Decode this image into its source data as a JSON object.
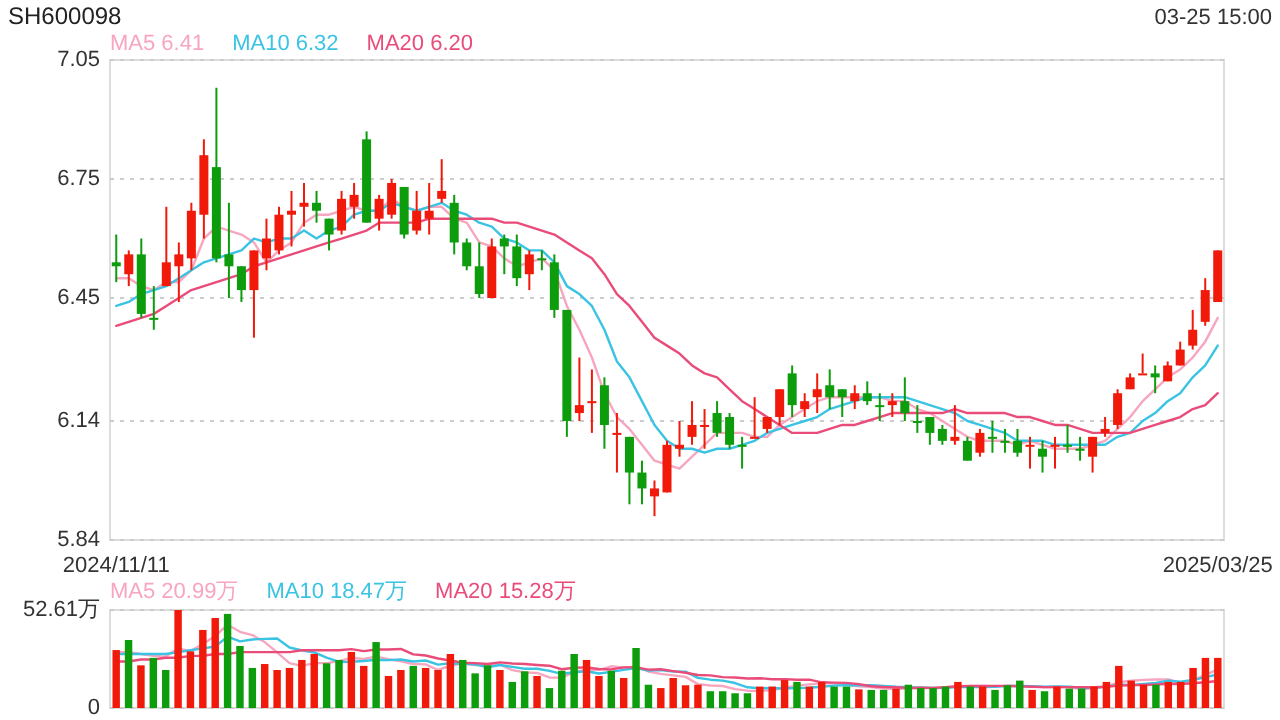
{
  "chart_data": [
    {
      "type": "candlestick",
      "title": "SH600098",
      "annotations": [
        "03-25 15:00"
      ],
      "legend": "top left",
      "grid": "y",
      "ylim": [
        5.84,
        7.05
      ],
      "yticks": [
        7.05,
        6.75,
        6.45,
        6.14,
        5.84
      ],
      "categories": [
        "2024/11/11",
        null,
        null,
        null,
        null,
        null,
        null,
        null,
        null,
        null,
        null,
        null,
        null,
        null,
        null,
        null,
        null,
        null,
        null,
        null,
        null,
        null,
        null,
        null,
        null,
        null,
        null,
        null,
        null,
        null,
        null,
        null,
        null,
        null,
        null,
        null,
        null,
        null,
        null,
        null,
        null,
        null,
        null,
        null,
        null,
        null,
        null,
        null,
        null,
        null,
        null,
        null,
        null,
        null,
        null,
        null,
        null,
        null,
        null,
        null,
        null,
        null,
        null,
        null,
        null,
        null,
        null,
        null,
        null,
        null,
        null,
        null,
        null,
        null,
        null,
        null,
        null,
        null,
        null,
        null,
        null,
        null,
        null,
        null,
        null,
        null,
        null,
        null,
        "2025/03/25"
      ],
      "ohlc": [
        [
          6.54,
          6.61,
          6.49,
          6.53
        ],
        [
          6.51,
          6.57,
          6.48,
          6.56
        ],
        [
          6.56,
          6.6,
          6.4,
          6.41
        ],
        [
          6.4,
          6.48,
          6.37,
          6.4
        ],
        [
          6.48,
          6.68,
          6.48,
          6.54
        ],
        [
          6.53,
          6.59,
          6.44,
          6.56
        ],
        [
          6.55,
          6.69,
          6.52,
          6.67
        ],
        [
          6.66,
          6.85,
          6.6,
          6.81
        ],
        [
          6.78,
          6.98,
          6.54,
          6.55
        ],
        [
          6.56,
          6.69,
          6.45,
          6.53
        ],
        [
          6.53,
          6.53,
          6.44,
          6.47
        ],
        [
          6.47,
          6.57,
          6.35,
          6.57
        ],
        [
          6.55,
          6.65,
          6.52,
          6.6
        ],
        [
          6.57,
          6.68,
          6.56,
          6.66
        ],
        [
          6.66,
          6.72,
          6.58,
          6.67
        ],
        [
          6.68,
          6.74,
          6.63,
          6.69
        ],
        [
          6.69,
          6.72,
          6.64,
          6.67
        ],
        [
          6.65,
          6.65,
          6.57,
          6.61
        ],
        [
          6.62,
          6.72,
          6.61,
          6.7
        ],
        [
          6.68,
          6.74,
          6.65,
          6.71
        ],
        [
          6.85,
          6.87,
          6.64,
          6.64
        ],
        [
          6.65,
          6.71,
          6.62,
          6.7
        ],
        [
          6.66,
          6.75,
          6.65,
          6.74
        ],
        [
          6.73,
          6.73,
          6.6,
          6.61
        ],
        [
          6.62,
          6.72,
          6.61,
          6.67
        ],
        [
          6.65,
          6.74,
          6.61,
          6.67
        ],
        [
          6.7,
          6.8,
          6.69,
          6.72
        ],
        [
          6.69,
          6.71,
          6.56,
          6.59
        ],
        [
          6.59,
          6.6,
          6.52,
          6.53
        ],
        [
          6.53,
          6.59,
          6.45,
          6.46
        ],
        [
          6.45,
          6.6,
          6.45,
          6.58
        ],
        [
          6.6,
          6.61,
          6.51,
          6.58
        ],
        [
          6.58,
          6.61,
          6.48,
          6.5
        ],
        [
          6.51,
          6.57,
          6.47,
          6.56
        ],
        [
          6.55,
          6.57,
          6.52,
          6.55
        ],
        [
          6.54,
          6.56,
          6.4,
          6.42
        ],
        [
          6.42,
          6.42,
          6.1,
          6.14
        ],
        [
          6.16,
          6.3,
          6.14,
          6.18
        ],
        [
          6.19,
          6.27,
          6.11,
          6.19
        ],
        [
          6.23,
          6.25,
          6.07,
          6.13
        ],
        [
          6.11,
          6.16,
          6.01,
          6.11
        ],
        [
          6.1,
          6.1,
          5.93,
          6.01
        ],
        [
          6.01,
          6.04,
          5.93,
          5.97
        ],
        [
          5.95,
          5.99,
          5.9,
          5.97
        ],
        [
          5.96,
          6.09,
          5.96,
          6.08
        ],
        [
          6.07,
          6.14,
          6.05,
          6.08
        ],
        [
          6.1,
          6.19,
          6.08,
          6.13
        ],
        [
          6.13,
          6.17,
          6.07,
          6.13
        ],
        [
          6.16,
          6.19,
          6.1,
          6.11
        ],
        [
          6.15,
          6.16,
          6.07,
          6.08
        ],
        [
          6.08,
          6.1,
          6.02,
          6.08
        ],
        [
          6.1,
          6.2,
          6.1,
          6.1
        ],
        [
          6.12,
          6.15,
          6.11,
          6.15
        ],
        [
          6.15,
          6.22,
          6.13,
          6.22
        ],
        [
          6.26,
          6.28,
          6.15,
          6.18
        ],
        [
          6.17,
          6.21,
          6.15,
          6.19
        ],
        [
          6.2,
          6.26,
          6.16,
          6.22
        ],
        [
          6.23,
          6.27,
          6.17,
          6.2
        ],
        [
          6.22,
          6.22,
          6.15,
          6.2
        ],
        [
          6.19,
          6.23,
          6.17,
          6.21
        ],
        [
          6.21,
          6.24,
          6.18,
          6.19
        ],
        [
          6.18,
          6.21,
          6.14,
          6.18
        ],
        [
          6.18,
          6.21,
          6.15,
          6.19
        ],
        [
          6.19,
          6.25,
          6.14,
          6.16
        ],
        [
          6.14,
          6.18,
          6.11,
          6.14
        ],
        [
          6.15,
          6.15,
          6.08,
          6.11
        ],
        [
          6.12,
          6.13,
          6.08,
          6.09
        ],
        [
          6.09,
          6.18,
          6.08,
          6.1
        ],
        [
          6.09,
          6.1,
          6.04,
          6.04
        ],
        [
          6.06,
          6.12,
          6.05,
          6.11
        ],
        [
          6.1,
          6.14,
          6.06,
          6.1
        ],
        [
          6.09,
          6.12,
          6.06,
          6.09
        ],
        [
          6.09,
          6.12,
          6.05,
          6.06
        ],
        [
          6.08,
          6.1,
          6.02,
          6.08
        ],
        [
          6.07,
          6.09,
          6.01,
          6.05
        ],
        [
          6.08,
          6.1,
          6.02,
          6.08
        ],
        [
          6.08,
          6.13,
          6.06,
          6.08
        ],
        [
          6.07,
          6.1,
          6.04,
          6.07
        ],
        [
          6.05,
          6.1,
          6.01,
          6.1
        ],
        [
          6.11,
          6.15,
          6.1,
          6.12
        ],
        [
          6.13,
          6.22,
          6.12,
          6.21
        ],
        [
          6.22,
          6.26,
          6.22,
          6.25
        ],
        [
          6.26,
          6.31,
          6.26,
          6.26
        ],
        [
          6.26,
          6.28,
          6.21,
          6.25
        ],
        [
          6.24,
          6.29,
          6.24,
          6.28
        ],
        [
          6.28,
          6.34,
          6.28,
          6.32
        ],
        [
          6.33,
          6.42,
          6.32,
          6.37
        ],
        [
          6.39,
          6.5,
          6.38,
          6.47
        ],
        [
          6.44,
          6.57,
          6.44,
          6.57
        ]
      ],
      "colors": [
        "#0c9c0c",
        "#f0190a",
        "#0c9c0c",
        "#0c9c0c",
        "#f0190a",
        "#f0190a",
        "#f0190a",
        "#f0190a",
        "#0c9c0c",
        "#0c9c0c",
        "#0c9c0c",
        "#f0190a",
        "#f0190a",
        "#f0190a",
        "#f0190a",
        "#f0190a",
        "#0c9c0c",
        "#0c9c0c",
        "#f0190a",
        "#f0190a",
        "#0c9c0c",
        "#f0190a",
        "#f0190a",
        "#0c9c0c",
        "#f0190a",
        "#f0190a",
        "#f0190a",
        "#0c9c0c",
        "#0c9c0c",
        "#0c9c0c",
        "#f0190a",
        "#0c9c0c",
        "#0c9c0c",
        "#f0190a",
        "#0c9c0c",
        "#0c9c0c",
        "#0c9c0c",
        "#f0190a",
        "#f0190a",
        "#0c9c0c",
        "#f0190a",
        "#0c9c0c",
        "#0c9c0c",
        "#f0190a",
        "#f0190a",
        "#f0190a",
        "#f0190a",
        "#f0190a",
        "#0c9c0c",
        "#0c9c0c",
        "#0c9c0c",
        "#f0190a",
        "#f0190a",
        "#f0190a",
        "#0c9c0c",
        "#f0190a",
        "#f0190a",
        "#0c9c0c",
        "#0c9c0c",
        "#f0190a",
        "#0c9c0c",
        "#0c9c0c",
        "#f0190a",
        "#0c9c0c",
        "#0c9c0c",
        "#0c9c0c",
        "#0c9c0c",
        "#f0190a",
        "#0c9c0c",
        "#f0190a",
        "#0c9c0c",
        "#0c9c0c",
        "#0c9c0c",
        "#f0190a",
        "#0c9c0c",
        "#f0190a",
        "#0c9c0c",
        "#0c9c0c",
        "#f0190a",
        "#f0190a",
        "#f0190a",
        "#f0190a",
        "#f0190a",
        "#0c9c0c",
        "#f0190a",
        "#f0190a",
        "#f0190a",
        "#f0190a",
        "#f0190a"
      ],
      "series": [
        {
          "name": "MA5 6.41",
          "type": "line",
          "color": "#f7a6c0",
          "values": [
            6.5,
            6.5,
            6.48,
            6.47,
            6.49,
            6.49,
            6.52,
            6.6,
            6.63,
            6.62,
            6.61,
            6.59,
            6.54,
            6.57,
            6.59,
            6.64,
            6.66,
            6.66,
            6.67,
            6.68,
            6.67,
            6.67,
            6.7,
            6.68,
            6.67,
            6.68,
            6.68,
            6.65,
            6.64,
            6.59,
            6.58,
            6.55,
            6.53,
            6.54,
            6.55,
            6.52,
            6.43,
            6.37,
            6.3,
            6.21,
            6.15,
            6.12,
            6.08,
            6.04,
            6.03,
            6.02,
            6.05,
            6.08,
            6.11,
            6.11,
            6.11,
            6.1,
            6.1,
            6.13,
            6.15,
            6.17,
            6.19,
            6.2,
            6.2,
            6.2,
            6.2,
            6.2,
            6.19,
            6.19,
            6.17,
            6.16,
            6.14,
            6.12,
            6.1,
            6.09,
            6.09,
            6.09,
            6.08,
            6.09,
            6.08,
            6.07,
            6.07,
            6.07,
            6.08,
            6.09,
            6.12,
            6.15,
            6.19,
            6.22,
            6.25,
            6.27,
            6.3,
            6.34,
            6.4
          ]
        },
        {
          "name": "MA10 6.32",
          "type": "line",
          "color": "#3bc3e3",
          "values": [
            6.43,
            6.44,
            6.46,
            6.47,
            6.48,
            6.5,
            6.52,
            6.54,
            6.55,
            6.56,
            6.57,
            6.6,
            6.59,
            6.6,
            6.6,
            6.62,
            6.6,
            6.62,
            6.63,
            6.66,
            6.67,
            6.67,
            6.69,
            6.68,
            6.67,
            6.68,
            6.69,
            6.67,
            6.66,
            6.64,
            6.63,
            6.6,
            6.59,
            6.57,
            6.57,
            6.54,
            6.48,
            6.46,
            6.43,
            6.37,
            6.29,
            6.25,
            6.19,
            6.13,
            6.09,
            6.07,
            6.07,
            6.06,
            6.07,
            6.07,
            6.08,
            6.09,
            6.11,
            6.12,
            6.13,
            6.14,
            6.15,
            6.17,
            6.18,
            6.19,
            6.2,
            6.2,
            6.2,
            6.2,
            6.19,
            6.18,
            6.17,
            6.16,
            6.14,
            6.13,
            6.12,
            6.11,
            6.09,
            6.09,
            6.09,
            6.08,
            6.08,
            6.08,
            6.08,
            6.08,
            6.1,
            6.11,
            6.14,
            6.16,
            6.19,
            6.21,
            6.25,
            6.28,
            6.33
          ]
        },
        {
          "name": "MA20 6.20",
          "type": "line",
          "color": "#ea4c7a",
          "values": [
            6.38,
            6.39,
            6.4,
            6.41,
            6.43,
            6.45,
            6.47,
            6.48,
            6.49,
            6.5,
            6.51,
            6.53,
            6.54,
            6.55,
            6.56,
            6.57,
            6.58,
            6.59,
            6.6,
            6.61,
            6.62,
            6.64,
            6.64,
            6.64,
            6.64,
            6.65,
            6.65,
            6.65,
            6.65,
            6.65,
            6.65,
            6.64,
            6.64,
            6.63,
            6.62,
            6.61,
            6.59,
            6.57,
            6.55,
            6.51,
            6.46,
            6.43,
            6.39,
            6.35,
            6.33,
            6.31,
            6.28,
            6.26,
            6.25,
            6.22,
            6.19,
            6.17,
            6.15,
            6.13,
            6.11,
            6.11,
            6.11,
            6.12,
            6.13,
            6.13,
            6.14,
            6.15,
            6.16,
            6.16,
            6.16,
            6.16,
            6.16,
            6.17,
            6.16,
            6.16,
            6.16,
            6.16,
            6.15,
            6.15,
            6.14,
            6.13,
            6.13,
            6.12,
            6.11,
            6.11,
            6.11,
            6.11,
            6.12,
            6.13,
            6.14,
            6.15,
            6.17,
            6.18,
            6.21
          ]
        }
      ]
    },
    {
      "type": "bar",
      "legend": "top left",
      "grid": "y",
      "ylim": [
        0,
        52.61
      ],
      "yticks": [
        0,
        {
          "value": 52.61,
          "label": "52.61万"
        }
      ],
      "categories": [
        null,
        null,
        null,
        null,
        null,
        null,
        null,
        null,
        null,
        null,
        null,
        null,
        null,
        null,
        null,
        null,
        null,
        null,
        null,
        null,
        null,
        null,
        null,
        null,
        null,
        null,
        null,
        null,
        null,
        null,
        null,
        null,
        null,
        null,
        null,
        null,
        null,
        null,
        null,
        null,
        null,
        null,
        null,
        null,
        null,
        null,
        null,
        null,
        null,
        null,
        null,
        null,
        null,
        null,
        null,
        null,
        null,
        null,
        null,
        null,
        null,
        null,
        null,
        null,
        null,
        null,
        null,
        null,
        null,
        null,
        null,
        null,
        null,
        null,
        null,
        null,
        null,
        null,
        null,
        null,
        null,
        null,
        null,
        null,
        null,
        null,
        null,
        null,
        null,
        null
      ],
      "values": [
        31.1,
        36.5,
        22.9,
        26.9,
        20.4,
        52.6,
        30.4,
        41.9,
        48.3,
        50.5,
        33.3,
        21.5,
        23.6,
        20.4,
        21.5,
        25.8,
        29.0,
        24.0,
        25.8,
        30.1,
        22.6,
        35.4,
        17.2,
        20.4,
        22.6,
        21.5,
        20.4,
        29.0,
        25.8,
        18.6,
        22.9,
        20.4,
        14.0,
        19.7,
        17.2,
        10.7,
        20.0,
        29.0,
        25.8,
        17.2,
        20.0,
        16.1,
        32.2,
        12.5,
        10.7,
        16.1,
        12.2,
        12.5,
        9.0,
        9.0,
        7.9,
        7.9,
        11.5,
        11.5,
        15.0,
        14.0,
        11.5,
        14.0,
        11.5,
        11.5,
        10.0,
        9.7,
        9.7,
        10.4,
        12.5,
        10.7,
        10.7,
        11.5,
        14.0,
        11.5,
        11.5,
        9.7,
        12.2,
        14.7,
        9.7,
        9.0,
        11.5,
        10.4,
        10.4,
        11.5,
        14.0,
        22.6,
        14.7,
        12.5,
        12.5,
        14.0,
        14.0,
        21.5,
        26.9,
        26.9
      ],
      "colors": [
        "#f0190a",
        "#0c9c0c",
        "#f0190a",
        "#0c9c0c",
        "#0c9c0c",
        "#f0190a",
        "#f0190a",
        "#f0190a",
        "#f0190a",
        "#0c9c0c",
        "#0c9c0c",
        "#0c9c0c",
        "#f0190a",
        "#f0190a",
        "#f0190a",
        "#f0190a",
        "#f0190a",
        "#0c9c0c",
        "#0c9c0c",
        "#f0190a",
        "#f0190a",
        "#0c9c0c",
        "#f0190a",
        "#f0190a",
        "#0c9c0c",
        "#f0190a",
        "#f0190a",
        "#f0190a",
        "#0c9c0c",
        "#0c9c0c",
        "#0c9c0c",
        "#f0190a",
        "#0c9c0c",
        "#0c9c0c",
        "#f0190a",
        "#0c9c0c",
        "#0c9c0c",
        "#0c9c0c",
        "#f0190a",
        "#f0190a",
        "#0c9c0c",
        "#f0190a",
        "#0c9c0c",
        "#0c9c0c",
        "#f0190a",
        "#f0190a",
        "#f0190a",
        "#f0190a",
        "#0c9c0c",
        "#0c9c0c",
        "#0c9c0c",
        "#0c9c0c",
        "#f0190a",
        "#f0190a",
        "#f0190a",
        "#0c9c0c",
        "#f0190a",
        "#f0190a",
        "#0c9c0c",
        "#0c9c0c",
        "#f0190a",
        "#0c9c0c",
        "#0c9c0c",
        "#f0190a",
        "#0c9c0c",
        "#0c9c0c",
        "#0c9c0c",
        "#0c9c0c",
        "#f0190a",
        "#0c9c0c",
        "#f0190a",
        "#0c9c0c",
        "#0c9c0c",
        "#0c9c0c",
        "#f0190a",
        "#0c9c0c",
        "#f0190a",
        "#0c9c0c",
        "#0c9c0c",
        "#f0190a",
        "#f0190a",
        "#f0190a",
        "#f0190a",
        "#f0190a",
        "#0c9c0c",
        "#f0190a",
        "#f0190a",
        "#f0190a",
        "#f0190a",
        "#f0190a"
      ],
      "series": [
        {
          "name": "MA5 20.99万",
          "type": "line",
          "color": "#f7a6c0",
          "values": [
            30,
            30,
            29,
            28,
            27.6,
            31.9,
            30.6,
            34.4,
            38.7,
            44.7,
            40.9,
            39.1,
            35.4,
            29.9,
            24.1,
            22.6,
            24.1,
            24.1,
            25.2,
            26.9,
            26.3,
            27.6,
            26.2,
            25.1,
            23.6,
            23.4,
            20.4,
            22.8,
            23.9,
            23.1,
            23.3,
            23.3,
            20.3,
            19.1,
            18.8,
            16.4,
            16.3,
            19.3,
            20.5,
            20.5,
            22.4,
            21.6,
            22.3,
            19.6,
            18.3,
            17.5,
            16.7,
            12.8,
            12.1,
            11.8,
            10.1,
            9.3,
            9.1,
            9.6,
            10.8,
            12.0,
            12.7,
            13.2,
            13.2,
            12.5,
            11.7,
            11.3,
            10.5,
            10.3,
            10.5,
            10.6,
            10.8,
            11.2,
            11.9,
            11.7,
            11.8,
            11.6,
            11.8,
            11.9,
            11.6,
            11.1,
            11.4,
            11.1,
            10.2,
            10.6,
            11.6,
            13.8,
            14.6,
            15.1,
            15.3,
            15.3,
            13.5,
            14.9,
            17.8,
            20.7
          ]
        },
        {
          "name": "MA10 18.47万",
          "type": "line",
          "color": "#3bc3e3",
          "values": [
            29,
            29,
            29,
            29,
            29,
            30,
            31,
            32,
            33,
            38.3,
            35.8,
            36.8,
            37.1,
            37.3,
            32.5,
            30.9,
            29.8,
            27.0,
            24.7,
            24.8,
            25.2,
            25.9,
            25.7,
            26.0,
            25.0,
            25.5,
            23.3,
            24.0,
            23.8,
            23.3,
            21.9,
            23.1,
            22.1,
            21.1,
            21.1,
            19.9,
            18.3,
            19.2,
            19.7,
            18.5,
            19.4,
            20.5,
            21.4,
            20.1,
            20.4,
            19.6,
            19.5,
            16.2,
            15.2,
            14.7,
            13.4,
            11.1,
            10.6,
            10.7,
            10.5,
            10.7,
            10.9,
            11.4,
            12.0,
            12.3,
            12.2,
            12.3,
            11.9,
            11.4,
            11.1,
            11.0,
            10.7,
            10.8,
            11.2,
            11.2,
            11.3,
            11.4,
            11.9,
            11.8,
            11.7,
            11.4,
            11.6,
            11.5,
            10.9,
            10.9,
            11.5,
            12.5,
            12.4,
            12.9,
            13.5,
            14.6,
            14.1,
            15.0,
            16.6,
            18.0
          ]
        },
        {
          "name": "MA20 15.28万",
          "type": "line",
          "color": "#ea4c7a",
          "values": [
            25,
            25,
            26,
            26,
            27,
            27,
            28,
            28,
            29,
            29,
            30,
            30,
            30,
            30,
            30,
            31,
            31,
            31,
            31,
            31.6,
            30.5,
            31.4,
            31.4,
            31.7,
            28.8,
            28.2,
            26.6,
            25.5,
            24.3,
            24.1,
            23.6,
            24.5,
            23.9,
            23.6,
            23.1,
            22.7,
            20.8,
            21.6,
            21.8,
            20.9,
            20.7,
            21.8,
            21.8,
            20.6,
            20.8,
            19.8,
            18.9,
            17.7,
            17.5,
            16.6,
            16.4,
            15.8,
            16.0,
            15.4,
            15.5,
            15.2,
            15.2,
            13.8,
            13.6,
            13.5,
            12.8,
            11.7,
            11.3,
            11.1,
            10.8,
            10.9,
            10.8,
            11.1,
            11.6,
            11.8,
            11.8,
            11.9,
            11.9,
            11.6,
            11.4,
            11.2,
            11.2,
            11.2,
            11.1,
            11.1,
            11.4,
            12.0,
            12.2,
            12.4,
            12.6,
            13.0,
            12.9,
            13.3,
            13.8,
            14.5
          ]
        }
      ]
    }
  ]
}
